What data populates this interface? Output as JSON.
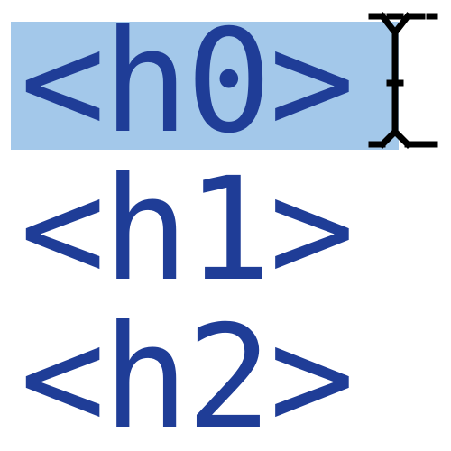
{
  "colors": {
    "text": "#1f3d97",
    "selection": "#a3c8ea",
    "cursor": "#000000",
    "background": "#ffffff"
  },
  "lines": [
    {
      "text": "<h0>",
      "selected": true
    },
    {
      "text": "<h1>",
      "selected": false
    },
    {
      "text": "<h2>",
      "selected": false
    }
  ],
  "cursor": {
    "icon": "text-ibeam-cursor-icon"
  }
}
